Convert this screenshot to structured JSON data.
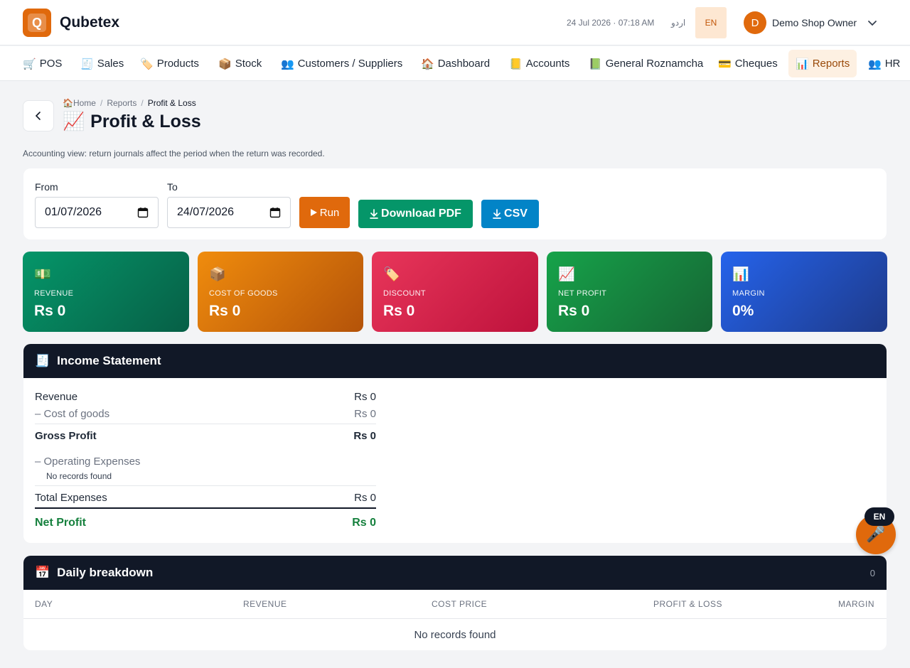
{
  "header": {
    "brand": "Qubetex",
    "logo_letter": "Q",
    "datetime": "24 Jul 2026 · 07:18 AM",
    "urdu_label": "اردو",
    "lang_code": "EN",
    "user_initial": "D",
    "user_name": "Demo Shop Owner"
  },
  "nav": [
    {
      "icon": "🛒",
      "label": "POS"
    },
    {
      "icon": "🧾",
      "label": "Sales"
    },
    {
      "icon": "🏷️",
      "label": "Products"
    },
    {
      "icon": "📦",
      "label": "Stock"
    },
    {
      "icon": "👥",
      "label": "Customers / Suppliers"
    },
    {
      "icon": "🏠",
      "label": "Dashboard"
    },
    {
      "icon": "📒",
      "label": "Accounts"
    },
    {
      "icon": "📗",
      "label": "General Roznamcha"
    },
    {
      "icon": "💳",
      "label": "Cheques"
    },
    {
      "icon": "📊",
      "label": "Reports"
    },
    {
      "icon": "👥",
      "label": "HR"
    }
  ],
  "breadcrumb": {
    "home_icon": "🏠",
    "home": "Home",
    "sep": "/",
    "reports": "Reports",
    "current": "Profit & Loss"
  },
  "page": {
    "title_icon": "📈",
    "title": "Profit & Loss",
    "subtitle": "Accounting view: return journals affect the period when the return was recorded."
  },
  "filters": {
    "from_label": "From",
    "from_value": "01/07/2026",
    "to_label": "To",
    "to_value": "24/07/2026",
    "run_label": "Run",
    "pdf_label": "Download PDF",
    "csv_label": "CSV"
  },
  "stats": [
    {
      "icon": "💵",
      "label": "REVENUE",
      "value": "Rs 0"
    },
    {
      "icon": "📦",
      "label": "COST OF GOODS",
      "value": "Rs 0"
    },
    {
      "icon": "🏷️",
      "label": "DISCOUNT",
      "value": "Rs 0"
    },
    {
      "icon": "📈",
      "label": "NET PROFIT",
      "value": "Rs 0"
    },
    {
      "icon": "📊",
      "label": "MARGIN",
      "value": "0%"
    }
  ],
  "income": {
    "icon": "🧾",
    "title": "Income Statement",
    "revenue_label": "Revenue",
    "revenue_value": "Rs 0",
    "cogs_label": "– Cost of goods",
    "cogs_value": "Rs 0",
    "gross_label": "Gross Profit",
    "gross_value": "Rs 0",
    "opex_label": "– Operating Expenses",
    "opex_empty": "No records found",
    "total_exp_label": "Total Expenses",
    "total_exp_value": "Rs 0",
    "net_label": "Net Profit",
    "net_value": "Rs 0"
  },
  "daily": {
    "icon": "📅",
    "title": "Daily breakdown",
    "count": "0",
    "columns": [
      "DAY",
      "REVENUE",
      "COST PRICE",
      "PROFIT & LOSS",
      "MARGIN"
    ],
    "empty": "No records found"
  },
  "mic": {
    "lang": "EN",
    "icon": "🎤"
  },
  "colors": {
    "accent": "#e0690c",
    "pdf_button": "#059669",
    "csv_button": "#0284c7",
    "panel_header": "#111827"
  }
}
